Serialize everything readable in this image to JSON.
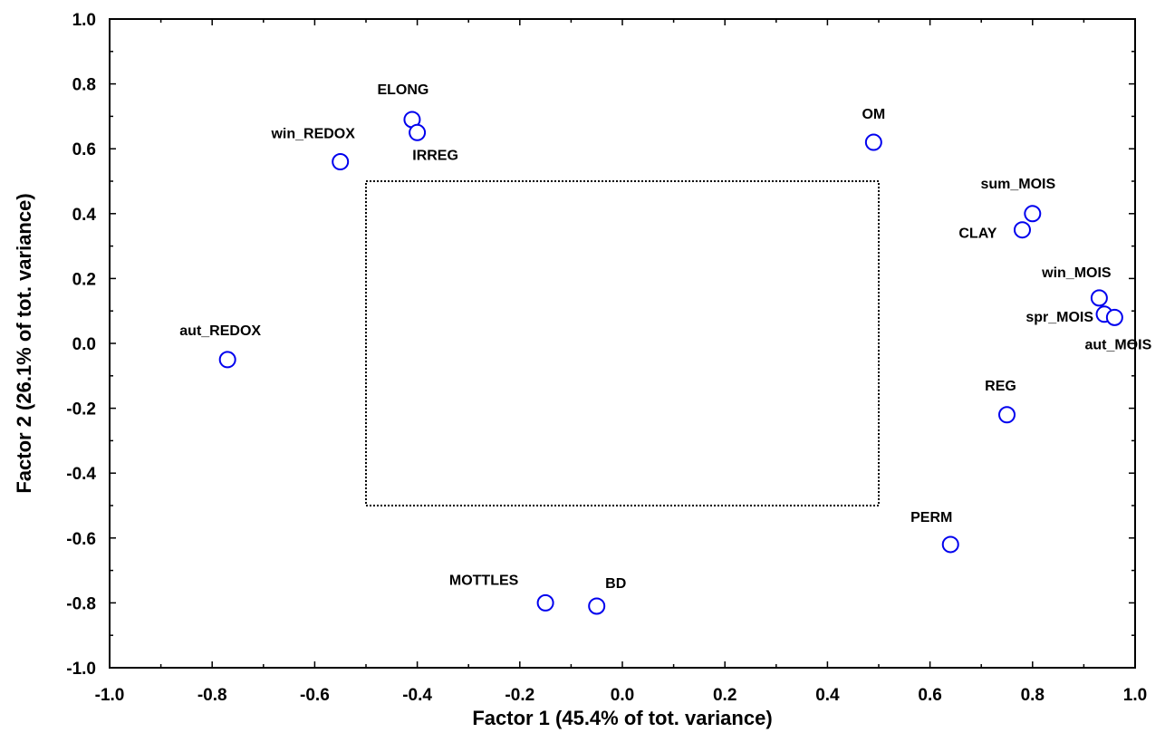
{
  "chart_data": {
    "type": "scatter",
    "xlabel": "Factor 1  (45.4% of  tot. variance)",
    "ylabel": "Factor 2  (26.1% of  tot. variance)",
    "xlim": [
      -1.0,
      1.0
    ],
    "ylim": [
      -1.0,
      1.0
    ],
    "grid": false,
    "x_ticks": [
      "-1.0",
      "-0.8",
      "-0.6",
      "-0.4",
      "-0.2",
      "0.0",
      "0.2",
      "0.4",
      "0.6",
      "0.8",
      "1.0"
    ],
    "y_ticks": [
      "-1.0",
      "-0.8",
      "-0.6",
      "-0.4",
      "-0.2",
      "0.0",
      "0.2",
      "0.4",
      "0.6",
      "0.8",
      "1.0"
    ],
    "reference_box": {
      "x": [
        -0.5,
        0.5
      ],
      "y": [
        -0.5,
        0.5
      ]
    },
    "marker_color": "#0000ee",
    "points": [
      {
        "label": "ELONG",
        "x": -0.41,
        "y": 0.69
      },
      {
        "label": "IRREG",
        "x": -0.4,
        "y": 0.65
      },
      {
        "label": "win_REDOX",
        "x": -0.55,
        "y": 0.56
      },
      {
        "label": "OM",
        "x": 0.49,
        "y": 0.62
      },
      {
        "label": "sum_MOIS",
        "x": 0.8,
        "y": 0.4
      },
      {
        "label": "CLAY",
        "x": 0.78,
        "y": 0.35
      },
      {
        "label": "win_MOIS",
        "x": 0.93,
        "y": 0.14
      },
      {
        "label": "spr_MOIS",
        "x": 0.94,
        "y": 0.09
      },
      {
        "label": "aut_MOIS",
        "x": 0.96,
        "y": 0.08
      },
      {
        "label": "aut_REDOX",
        "x": -0.77,
        "y": -0.05
      },
      {
        "label": "REG",
        "x": 0.75,
        "y": -0.22
      },
      {
        "label": "PERM",
        "x": 0.64,
        "y": -0.62
      },
      {
        "label": "MOTTLES",
        "x": -0.15,
        "y": -0.8
      },
      {
        "label": "BD",
        "x": -0.05,
        "y": -0.81
      }
    ]
  }
}
